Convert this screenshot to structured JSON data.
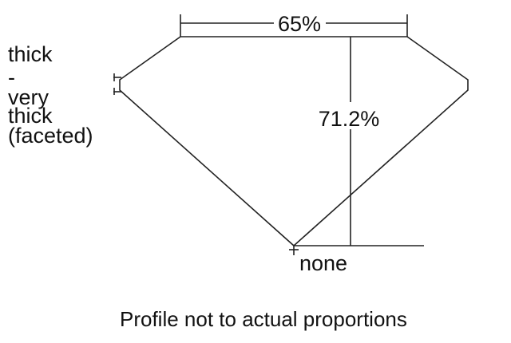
{
  "girdle_label": [
    "thick",
    "-",
    "very",
    "thick",
    "(faceted)"
  ],
  "table_percent": "65%",
  "depth_percent": "71.2%",
  "culet_label": "none",
  "caption": "Profile not to actual proportions",
  "colors": {
    "line": "#222222",
    "background": "#ffffff"
  }
}
